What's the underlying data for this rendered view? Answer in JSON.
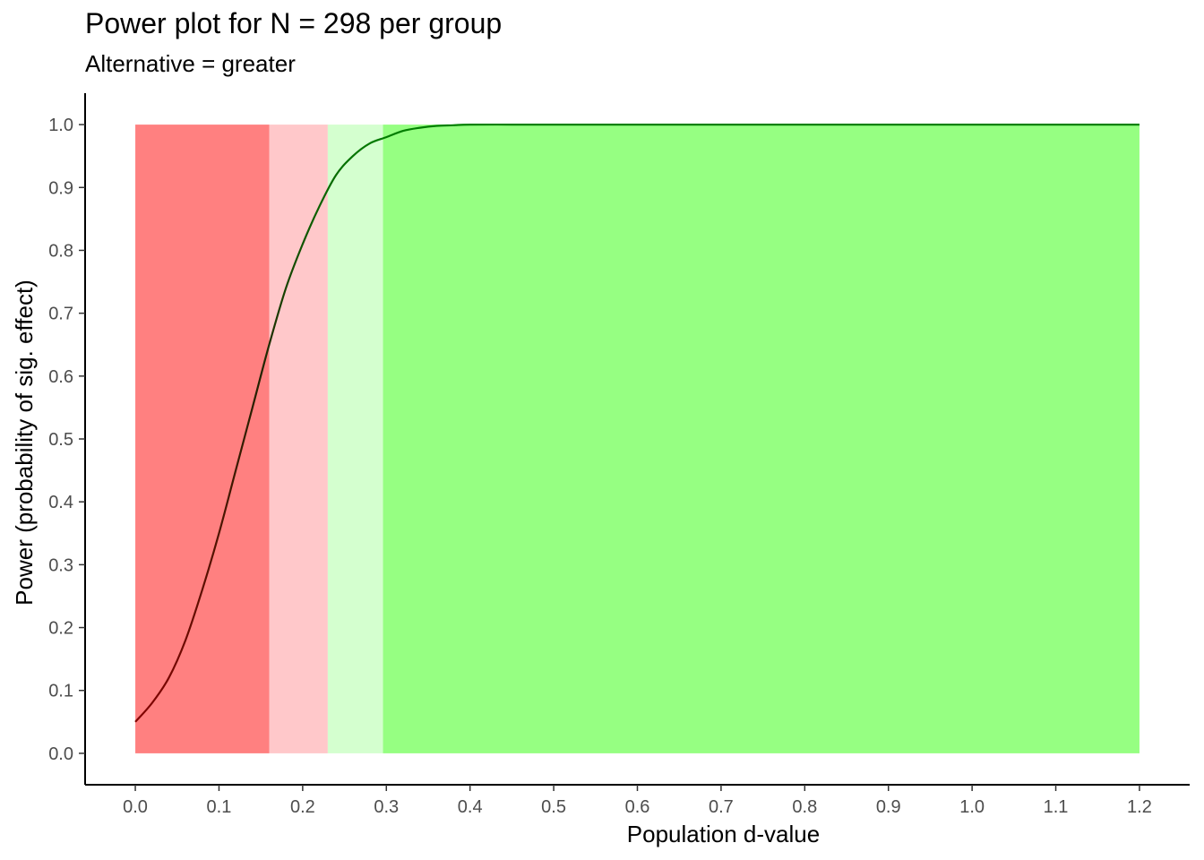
{
  "chart_data": {
    "type": "line",
    "title": "Power plot for N = 298 per group",
    "subtitle": "Alternative = greater",
    "xlabel": "Population d-value",
    "ylabel": "Power (probability of sig. effect)",
    "xlim": [
      -0.06,
      1.26
    ],
    "ylim": [
      -0.05,
      1.05
    ],
    "x_ticks": [
      "0.0",
      "0.1",
      "0.2",
      "0.3",
      "0.4",
      "0.5",
      "0.6",
      "0.7",
      "0.8",
      "0.9",
      "1.0",
      "1.1",
      "1.2"
    ],
    "y_ticks": [
      "0.0",
      "0.1",
      "0.2",
      "0.3",
      "0.4",
      "0.5",
      "0.6",
      "0.7",
      "0.8",
      "0.9",
      "1.0"
    ],
    "grid": false,
    "legend": "none",
    "bands": [
      {
        "x0": 0.0,
        "x1": 0.16,
        "y0": 0.0,
        "y1": 1.0,
        "color": "#ff8080"
      },
      {
        "x0": 0.16,
        "x1": 0.23,
        "y0": 0.0,
        "y1": 1.0,
        "color": "#ffc8ca"
      },
      {
        "x0": 0.23,
        "x1": 0.296,
        "y0": 0.0,
        "y1": 1.0,
        "color": "#d4ffcf"
      },
      {
        "x0": 0.296,
        "x1": 1.2,
        "y0": 0.0,
        "y1": 1.0,
        "color": "#96ff82"
      }
    ],
    "series": [
      {
        "x": [
          0.0,
          0.02,
          0.04,
          0.06,
          0.08,
          0.1,
          0.12,
          0.14,
          0.16,
          0.18,
          0.2,
          0.22,
          0.24,
          0.26,
          0.28,
          0.3,
          0.32,
          0.34,
          0.36,
          0.38,
          0.4,
          0.45,
          0.5,
          0.6,
          0.8,
          1.0,
          1.2
        ],
        "y": [
          0.05,
          0.08,
          0.12,
          0.18,
          0.26,
          0.35,
          0.45,
          0.55,
          0.65,
          0.74,
          0.81,
          0.87,
          0.92,
          0.95,
          0.97,
          0.98,
          0.99,
          0.995,
          0.998,
          0.999,
          1.0,
          1.0,
          1.0,
          1.0,
          1.0,
          1.0,
          1.0
        ],
        "color_low": "#8b0000",
        "color_high": "#008000"
      }
    ],
    "axis_color": "#000000"
  }
}
